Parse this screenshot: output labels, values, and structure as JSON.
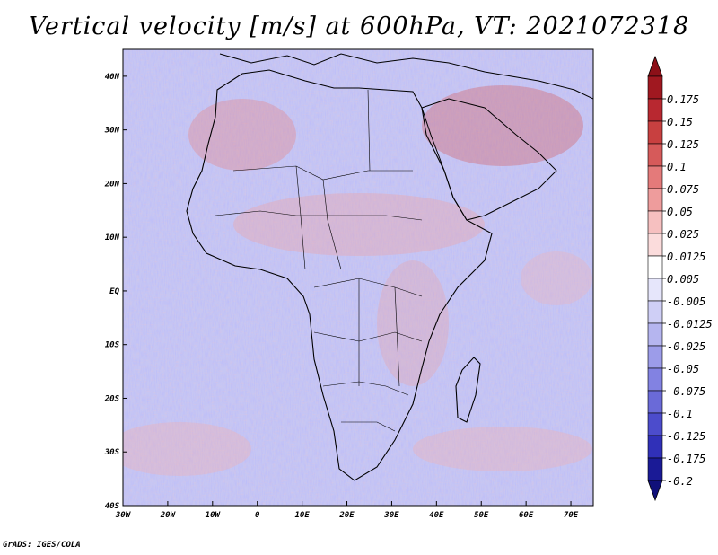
{
  "title": "Vertical velocity [m/s] at 600hPa, VT: 2021072318",
  "variable": "Vertical velocity",
  "units": "m/s",
  "level": "600hPa",
  "valid_time": "2021072318",
  "credit": "GrADS: IGES/COLA",
  "map": {
    "region": "Africa and surrounding oceans",
    "lon_range": [
      -30,
      75
    ],
    "lat_range": [
      -40,
      45
    ],
    "lon_ticks": [
      "30W",
      "20W",
      "10W",
      "0",
      "10E",
      "20E",
      "30E",
      "40E",
      "50E",
      "60E",
      "70E"
    ],
    "lat_ticks": [
      "40N",
      "30N",
      "20N",
      "10N",
      "EQ",
      "10S",
      "20S",
      "30S",
      "40S"
    ]
  },
  "colorbar": {
    "labels": [
      "0.175",
      "0.15",
      "0.125",
      "0.1",
      "0.075",
      "0.05",
      "0.025",
      "0.0125",
      "0.005",
      "-0.005",
      "-0.0125",
      "-0.025",
      "-0.05",
      "-0.075",
      "-0.1",
      "-0.125",
      "-0.175",
      "-0.2"
    ],
    "colors": [
      "#a01820",
      "#b82830",
      "#c84040",
      "#d65a5a",
      "#e47a7a",
      "#ee9c9c",
      "#f6c0c0",
      "#fbdcdc",
      "#ffffff",
      "#e6e6fb",
      "#cfcff6",
      "#b5b5ef",
      "#9c9ce9",
      "#8282e2",
      "#6a6ad8",
      "#4c4ccc",
      "#3030b8",
      "#1a1a96"
    ],
    "top_arrow_color": "#8c1018",
    "bottom_arrow_color": "#10107a"
  }
}
